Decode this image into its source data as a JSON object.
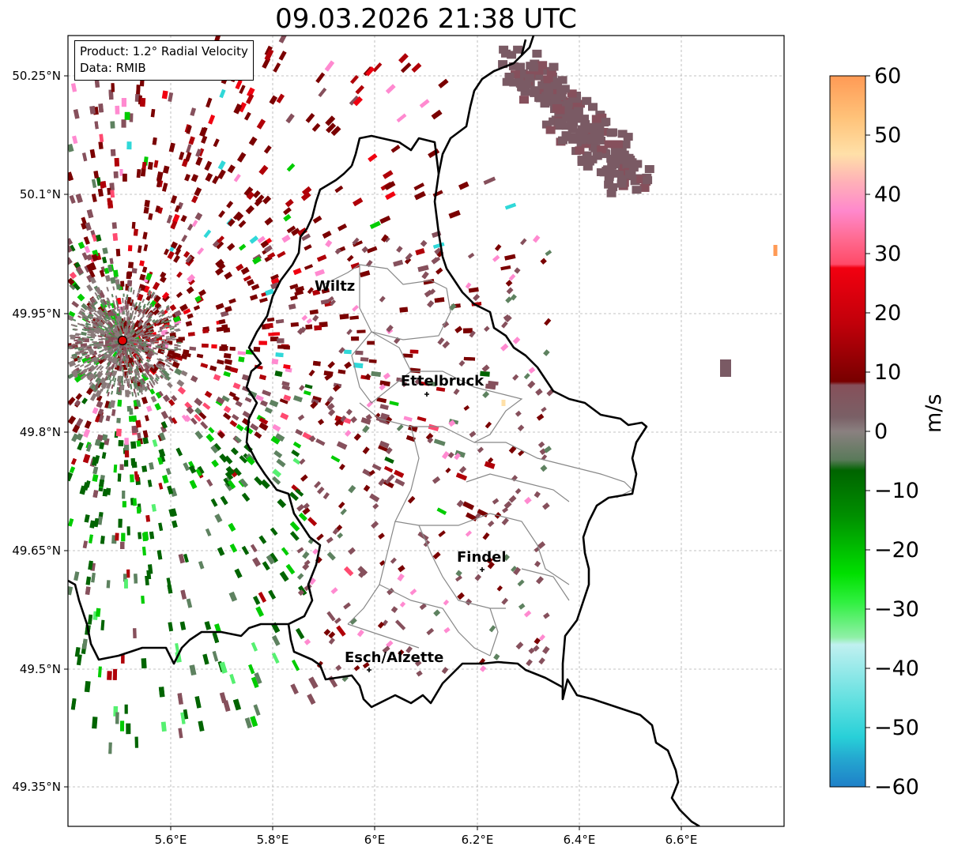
{
  "title": "09.03.2026 21:38 UTC",
  "info": {
    "product": "Product: 1.2° Radial Velocity",
    "data_source": "Data: RMIB"
  },
  "axes": {
    "lon_ticks": [
      "5.6°E",
      "5.8°E",
      "6°E",
      "6.2°E",
      "6.4°E",
      "6.6°E"
    ],
    "lat_ticks": [
      "50.25°N",
      "50.1°N",
      "49.95°N",
      "49.8°N",
      "49.65°N",
      "49.5°N",
      "49.35°N"
    ]
  },
  "cities": [
    {
      "name": "Wiltz",
      "lon": 5.93,
      "lat": 49.97,
      "marker": false
    },
    {
      "name": "Ettelbruck",
      "lon": 6.1,
      "lat": 49.85,
      "marker": true
    },
    {
      "name": "Findel",
      "lon": 6.21,
      "lat": 49.63,
      "marker": true
    },
    {
      "name": "Esch/Alzette",
      "lon": 5.99,
      "lat": 49.5,
      "marker": true
    }
  ],
  "radar_site": {
    "lon": 5.51,
    "lat": 49.915
  },
  "colorbar": {
    "label": "m/s",
    "ticks": [
      "60",
      "50",
      "40",
      "30",
      "20",
      "10",
      "0",
      "−10",
      "−20",
      "−30",
      "−40",
      "−50",
      "−60"
    ],
    "colors": {
      "c60": "#ff9a55",
      "c50": "#ffc880",
      "c45": "#ffe0a8",
      "c40": "#ff8ad0",
      "c32": "#ff4a70",
      "c25": "#f00010",
      "c15": "#b00008",
      "c8": "#7a0000",
      "c4": "#86505c",
      "c0": "#8a7a7a",
      "cm4": "#5e8260",
      "cm8": "#006400",
      "cm20": "#00cc00",
      "cm30": "#55f070",
      "cm36": "#b8f0f0",
      "cm50": "#30d8d8",
      "cm58": "#1f8bcc"
    }
  }
}
